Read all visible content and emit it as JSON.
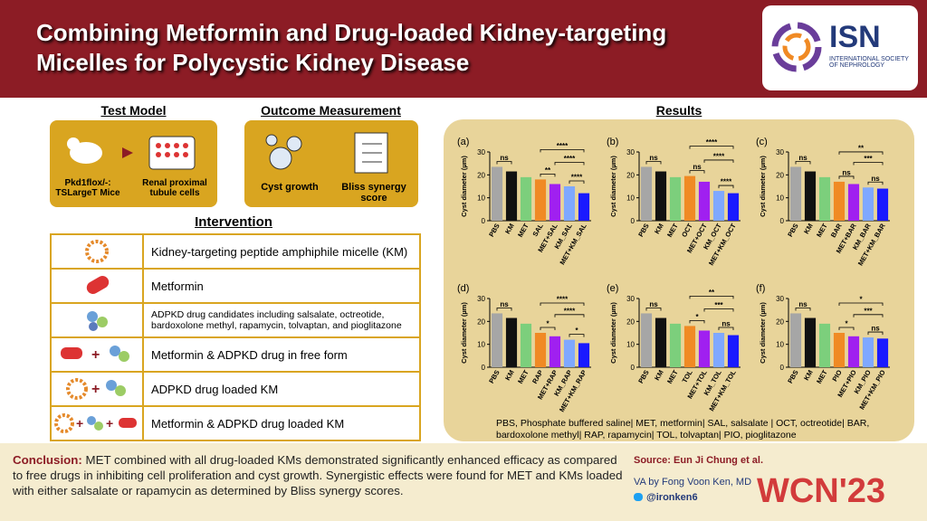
{
  "header": {
    "title": "Combining Metformin and Drug-loaded Kidney-targeting Micelles for Polycystic Kidney Disease",
    "logo": "ISN",
    "logo_subtitle": "INTERNATIONAL SOCIETY OF NEPHROLOGY"
  },
  "test_model": {
    "heading": "Test Model",
    "items": [
      "Pkd1flox/-: TSLargeT Mice",
      "Renal proximal tubule cells"
    ]
  },
  "outcome": {
    "heading": "Outcome Measurement",
    "items": [
      "Cyst growth",
      "Bliss synergy score"
    ]
  },
  "intervention": {
    "heading": "Intervention",
    "rows": [
      "Kidney-targeting peptide amphiphile micelle (KM)",
      "Metformin",
      "ADPKD drug candidates including salsalate, octreotide, bardoxolone methyl, rapamycin, tolvaptan, and pioglitazone",
      "Metformin & ADPKD drug in free form",
      "ADPKD drug loaded KM",
      "Metformin & ADPKD drug loaded KM"
    ]
  },
  "results": {
    "heading": "Results",
    "charts": [
      {
        "type": "bar",
        "panel": "(a)",
        "y_label": "Cyst diameter (µm)",
        "categories": [
          "PBS",
          "KM",
          "MET",
          "SAL",
          "MET+SAL",
          "KM_SAL",
          "MET+KM_SAL"
        ],
        "values": [
          23.5,
          21.5,
          19,
          18,
          16,
          15,
          12
        ],
        "colors": [
          "#a6a6a6",
          "#111111",
          "#7ccf7c",
          "#f08a24",
          "#a020f0",
          "#7fa8ff",
          "#1a1aff"
        ],
        "ylim": [
          0,
          30
        ],
        "yticks": [
          0,
          10,
          20,
          30
        ],
        "significance": [
          "ns",
          "****",
          "****",
          "**",
          "****"
        ]
      },
      {
        "type": "bar",
        "panel": "(b)",
        "y_label": "Cyst diameter (µm)",
        "categories": [
          "PBS",
          "KM",
          "MET",
          "OCT",
          "MET+OCT",
          "KM_OCT",
          "MET+KM_OCT"
        ],
        "values": [
          23.5,
          21.5,
          19,
          19.5,
          17,
          13,
          12
        ],
        "colors": [
          "#a6a6a6",
          "#111111",
          "#7ccf7c",
          "#f08a24",
          "#a020f0",
          "#7fa8ff",
          "#1a1aff"
        ],
        "ylim": [
          0,
          30
        ],
        "yticks": [
          0,
          10,
          20,
          30
        ],
        "significance": [
          "ns",
          "****",
          "****",
          "ns",
          "****"
        ]
      },
      {
        "type": "bar",
        "panel": "(c)",
        "y_label": "Cyst diameter (µm)",
        "categories": [
          "PBS",
          "KM",
          "MET",
          "BAR",
          "MET+BAR",
          "KM_BAR",
          "MET+KM_BAR"
        ],
        "values": [
          23.5,
          21.5,
          19,
          17,
          16,
          14.5,
          14
        ],
        "colors": [
          "#a6a6a6",
          "#111111",
          "#7ccf7c",
          "#f08a24",
          "#a020f0",
          "#7fa8ff",
          "#1a1aff"
        ],
        "ylim": [
          0,
          30
        ],
        "yticks": [
          0,
          10,
          20,
          30
        ],
        "significance": [
          "ns",
          "**",
          "***",
          "ns",
          "ns"
        ]
      },
      {
        "type": "bar",
        "panel": "(d)",
        "y_label": "Cyst diameter (µm)",
        "categories": [
          "PBS",
          "KM",
          "MET",
          "RAP",
          "MET+RAP",
          "KM_RAP",
          "MET+KM_RAP"
        ],
        "values": [
          23.5,
          21.5,
          19,
          15,
          13.5,
          12,
          10.5
        ],
        "colors": [
          "#a6a6a6",
          "#111111",
          "#7ccf7c",
          "#f08a24",
          "#a020f0",
          "#7fa8ff",
          "#1a1aff"
        ],
        "ylim": [
          0,
          30
        ],
        "yticks": [
          0,
          10,
          20,
          30
        ],
        "significance": [
          "ns",
          "****",
          "****",
          "*",
          "*"
        ]
      },
      {
        "type": "bar",
        "panel": "(e)",
        "y_label": "Cyst diameter (µm)",
        "categories": [
          "PBS",
          "KM",
          "MET",
          "TOL",
          "MET+TOL",
          "KM_TOL",
          "MET+KM_TOL"
        ],
        "values": [
          23.5,
          21.5,
          19,
          18,
          16,
          15,
          14
        ],
        "colors": [
          "#a6a6a6",
          "#111111",
          "#7ccf7c",
          "#f08a24",
          "#a020f0",
          "#7fa8ff",
          "#1a1aff"
        ],
        "ylim": [
          0,
          30
        ],
        "yticks": [
          0,
          10,
          20,
          30
        ],
        "significance": [
          "ns",
          "**",
          "***",
          "*",
          "ns"
        ]
      },
      {
        "type": "bar",
        "panel": "(f)",
        "y_label": "Cyst diameter (µm)",
        "categories": [
          "PBS",
          "KM",
          "MET",
          "PIO",
          "MET+PIO",
          "KM_PIO",
          "MET+KM_PIO"
        ],
        "values": [
          23.5,
          21.5,
          19,
          15,
          13.5,
          13,
          12.5
        ],
        "colors": [
          "#a6a6a6",
          "#111111",
          "#7ccf7c",
          "#f08a24",
          "#a020f0",
          "#7fa8ff",
          "#1a1aff"
        ],
        "ylim": [
          0,
          30
        ],
        "yticks": [
          0,
          10,
          20,
          30
        ],
        "significance": [
          "ns",
          "*",
          "***",
          "*",
          "ns"
        ]
      }
    ],
    "abbreviations": "PBS, Phosphate buffered saline| MET, metformin| SAL, salsalate | OCT, octreotide| BAR, bardoxolone methyl| RAP, rapamycin| TOL, tolvaptan| PIO, pioglitazone"
  },
  "footer": {
    "conclusion_label": "Conclusion:",
    "conclusion": "MET combined with all drug-loaded KMs demonstrated significantly enhanced efficacy as compared to free drugs in inhibiting cell proliferation and cyst growth. Synergistic effects were found for MET and KMs loaded with either salsalate or rapamycin as determined by Bliss synergy scores.",
    "source": "Source: Eun Ji Chung et al.",
    "va": "VA by Fong Voon Ken, MD",
    "twitter": "@ironken6",
    "event": "WCN'23"
  }
}
